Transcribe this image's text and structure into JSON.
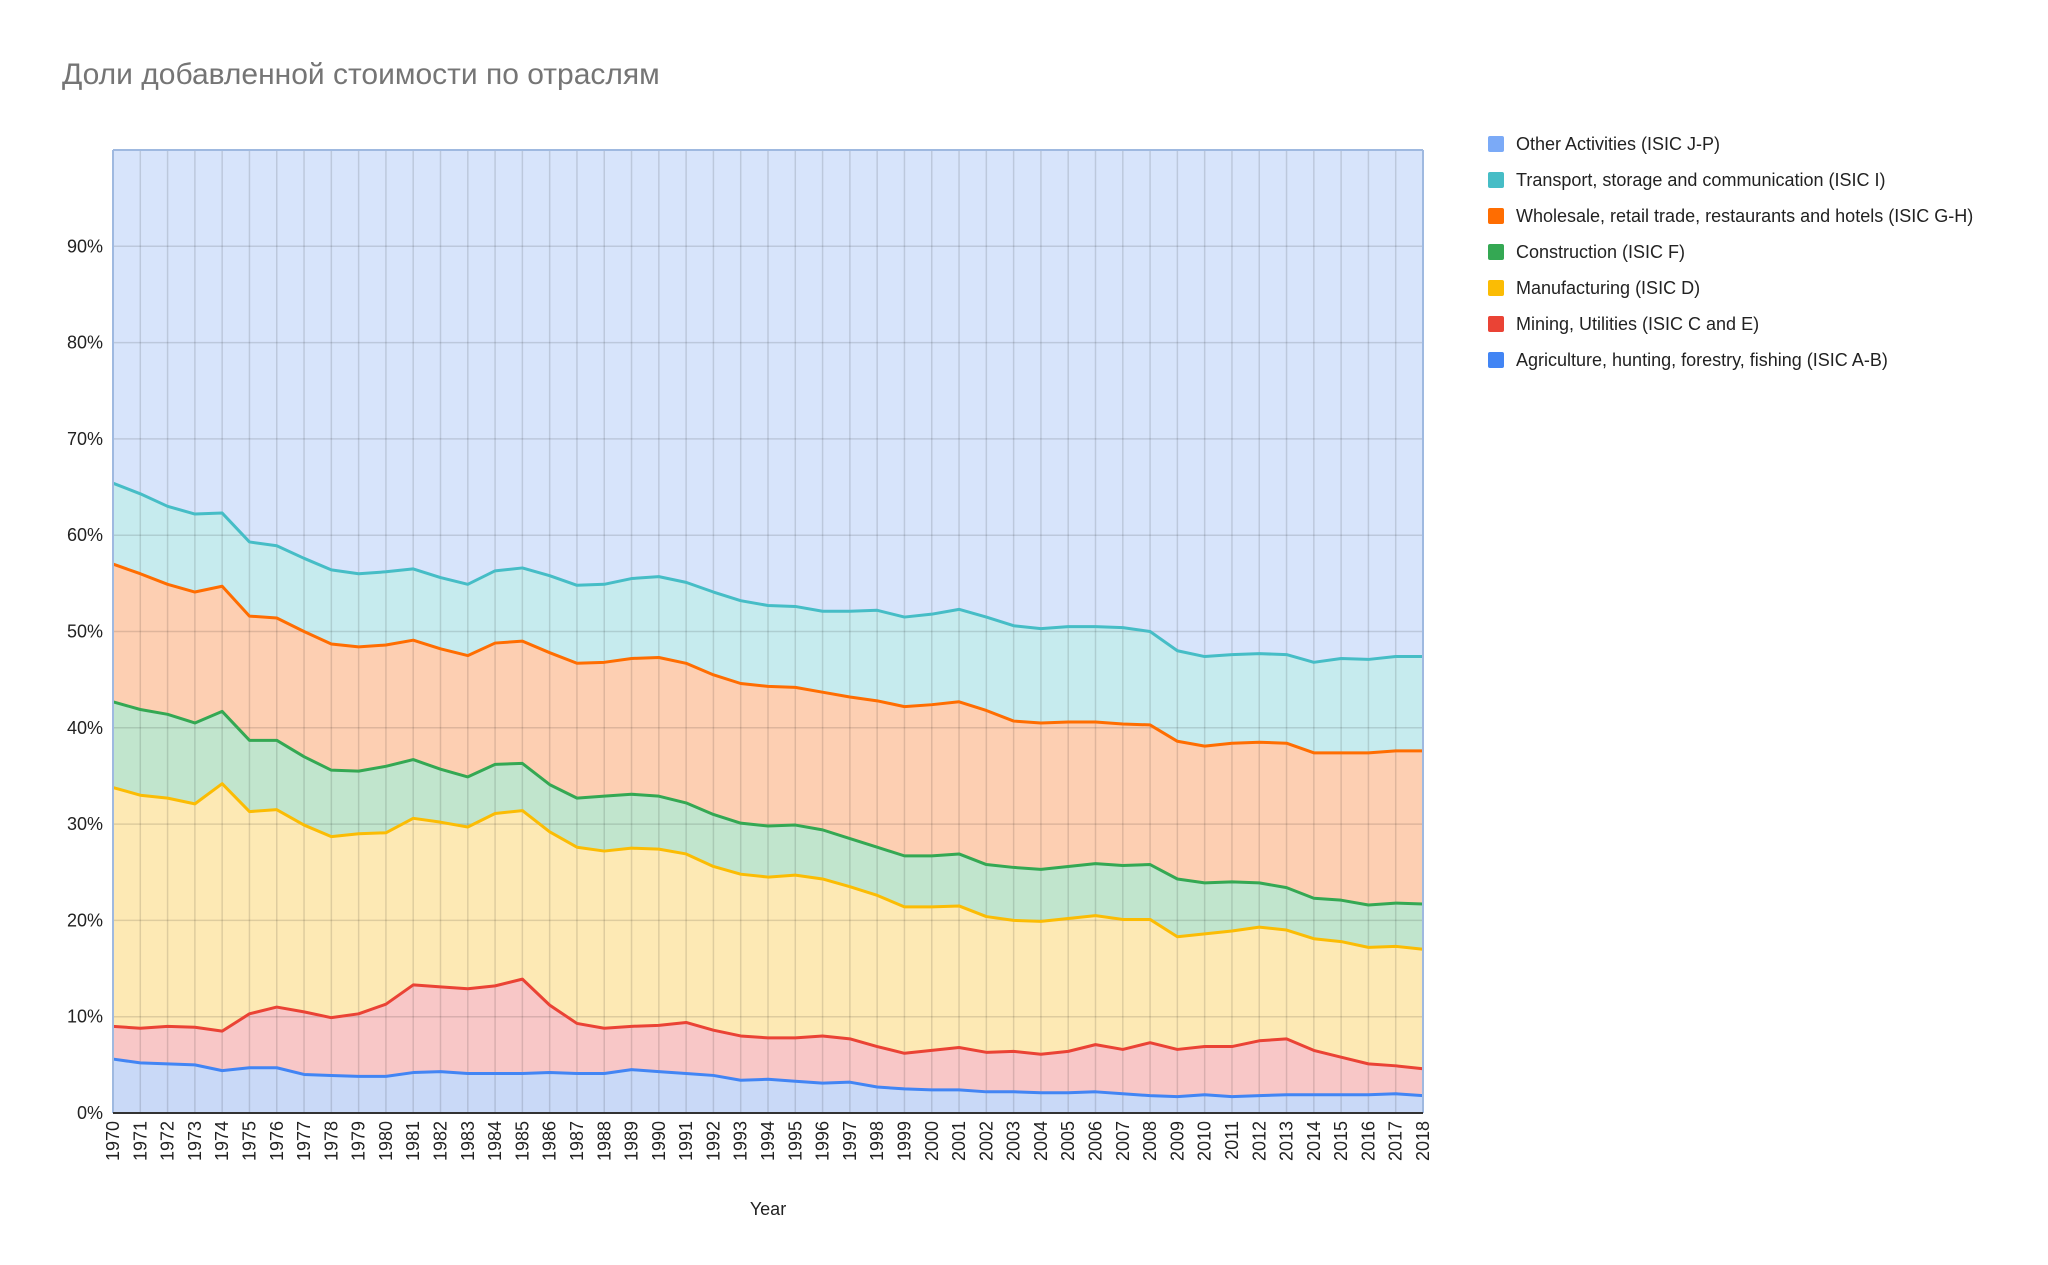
{
  "chart_data": {
    "type": "area",
    "stacked": true,
    "title": "Доли добавленной стоимости по отраслям",
    "xlabel": "Year",
    "ylabel": "",
    "ylim": [
      0,
      100
    ],
    "y_tick_labels": [
      "0%",
      "10%",
      "20%",
      "30%",
      "40%",
      "50%",
      "60%",
      "70%",
      "80%",
      "90%"
    ],
    "y_tick_values": [
      0,
      10,
      20,
      30,
      40,
      50,
      60,
      70,
      80,
      90
    ],
    "grid": true,
    "legend_position": "right",
    "categories": [
      "1970",
      "1971",
      "1972",
      "1973",
      "1974",
      "1975",
      "1976",
      "1977",
      "1978",
      "1979",
      "1980",
      "1981",
      "1982",
      "1983",
      "1984",
      "1985",
      "1986",
      "1987",
      "1988",
      "1989",
      "1990",
      "1991",
      "1992",
      "1993",
      "1994",
      "1995",
      "1996",
      "1997",
      "1998",
      "1999",
      "2000",
      "2001",
      "2002",
      "2003",
      "2004",
      "2005",
      "2006",
      "2007",
      "2008",
      "2009",
      "2010",
      "2011",
      "2012",
      "2013",
      "2014",
      "2015",
      "2016",
      "2017",
      "2018"
    ],
    "series": [
      {
        "name": "Agriculture, hunting, forestry, fishing (ISIC A-B)",
        "color": "#4285f4",
        "fill": "#c9d9f7",
        "cumulative": [
          5.6,
          5.2,
          5.1,
          5.0,
          4.4,
          4.7,
          4.7,
          4.0,
          3.9,
          3.8,
          3.8,
          4.2,
          4.3,
          4.1,
          4.1,
          4.1,
          4.2,
          4.1,
          4.1,
          4.5,
          4.3,
          4.1,
          3.9,
          3.4,
          3.5,
          3.3,
          3.1,
          3.2,
          2.7,
          2.5,
          2.4,
          2.4,
          2.2,
          2.2,
          2.1,
          2.1,
          2.2,
          2.0,
          1.8,
          1.7,
          1.9,
          1.7,
          1.8,
          1.9,
          1.9,
          1.9,
          1.9,
          2.0,
          1.8
        ]
      },
      {
        "name": "Mining, Utilities (ISIC C and E)",
        "color": "#ea4335",
        "fill": "#f8c7c7",
        "cumulative": [
          9.0,
          8.8,
          9.0,
          8.9,
          8.5,
          10.3,
          11.0,
          10.5,
          9.9,
          10.3,
          11.3,
          13.3,
          13.1,
          12.9,
          13.2,
          13.9,
          11.2,
          9.3,
          8.8,
          9.0,
          9.1,
          9.4,
          8.6,
          8.0,
          7.8,
          7.8,
          8.0,
          7.7,
          6.9,
          6.2,
          6.5,
          6.8,
          6.3,
          6.4,
          6.1,
          6.4,
          7.1,
          6.6,
          7.3,
          6.6,
          6.9,
          6.9,
          7.5,
          7.7,
          6.5,
          5.8,
          5.1,
          4.9,
          4.6
        ]
      },
      {
        "name": "Manufacturing (ISIC D)",
        "color": "#fbbc04",
        "fill": "#fde9b4",
        "cumulative": [
          33.8,
          33.0,
          32.7,
          32.1,
          34.2,
          31.3,
          31.5,
          29.9,
          28.7,
          29.0,
          29.1,
          30.6,
          30.2,
          29.7,
          31.1,
          31.4,
          29.2,
          27.6,
          27.2,
          27.5,
          27.4,
          26.9,
          25.6,
          24.8,
          24.5,
          24.7,
          24.3,
          23.5,
          22.6,
          21.4,
          21.4,
          21.5,
          20.4,
          20.0,
          19.9,
          20.2,
          20.5,
          20.1,
          20.1,
          18.3,
          18.6,
          18.9,
          19.3,
          19.0,
          18.1,
          17.8,
          17.2,
          17.3,
          17.0
        ]
      },
      {
        "name": "Construction (ISIC F)",
        "color": "#34a853",
        "fill": "#c1e5cd",
        "cumulative": [
          42.7,
          41.9,
          41.4,
          40.5,
          41.7,
          38.7,
          38.7,
          37.0,
          35.6,
          35.5,
          36.0,
          36.7,
          35.7,
          34.9,
          36.2,
          36.3,
          34.1,
          32.7,
          32.9,
          33.1,
          32.9,
          32.2,
          31.0,
          30.1,
          29.8,
          29.9,
          29.4,
          28.5,
          27.6,
          26.7,
          26.7,
          26.9,
          25.8,
          25.5,
          25.3,
          25.6,
          25.9,
          25.7,
          25.8,
          24.3,
          23.9,
          24.0,
          23.9,
          23.4,
          22.3,
          22.1,
          21.6,
          21.8,
          21.7
        ]
      },
      {
        "name": "Wholesale, retail trade, restaurants and hotels (ISIC G-H)",
        "color": "#ff6d01",
        "fill": "#fdcfb2",
        "cumulative": [
          57.0,
          56.0,
          54.9,
          54.1,
          54.7,
          51.6,
          51.4,
          50.0,
          48.7,
          48.4,
          48.6,
          49.1,
          48.2,
          47.5,
          48.8,
          49.0,
          47.8,
          46.7,
          46.8,
          47.2,
          47.3,
          46.7,
          45.5,
          44.6,
          44.3,
          44.2,
          43.7,
          43.2,
          42.8,
          42.2,
          42.4,
          42.7,
          41.8,
          40.7,
          40.5,
          40.6,
          40.6,
          40.4,
          40.3,
          38.6,
          38.1,
          38.4,
          38.5,
          38.4,
          37.4,
          37.4,
          37.4,
          37.6,
          37.6
        ]
      },
      {
        "name": "Transport, storage and communication (ISIC I)",
        "color": "#46bdc6",
        "fill": "#c6ebee",
        "cumulative": [
          65.4,
          64.3,
          63.0,
          62.2,
          62.3,
          59.3,
          58.9,
          57.6,
          56.4,
          56.0,
          56.2,
          56.5,
          55.6,
          54.9,
          56.3,
          56.6,
          55.8,
          54.8,
          54.9,
          55.5,
          55.7,
          55.1,
          54.1,
          53.2,
          52.7,
          52.6,
          52.1,
          52.1,
          52.2,
          51.5,
          51.8,
          52.3,
          51.5,
          50.6,
          50.3,
          50.5,
          50.5,
          50.4,
          50.0,
          48.0,
          47.4,
          47.6,
          47.7,
          47.6,
          46.8,
          47.2,
          47.1,
          47.4,
          47.4
        ]
      },
      {
        "name": "Other Activities (ISIC J-P)",
        "color": "#7baaf7",
        "fill": "#d7e4fb",
        "cumulative": [
          100,
          100,
          100,
          100,
          100,
          100,
          100,
          100,
          100,
          100,
          100,
          100,
          100,
          100,
          100,
          100,
          100,
          100,
          100,
          100,
          100,
          100,
          100,
          100,
          100,
          100,
          100,
          100,
          100,
          100,
          100,
          100,
          100,
          100,
          100,
          100,
          100,
          100,
          100,
          100,
          100,
          100,
          100,
          100,
          100,
          100,
          100,
          100,
          100
        ]
      }
    ]
  },
  "legend": {
    "items": [
      {
        "label": "Other Activities (ISIC J-P)",
        "color": "#7baaf7"
      },
      {
        "label": "Transport, storage and communication (ISIC I)",
        "color": "#46bdc6"
      },
      {
        "label": "Wholesale, retail trade, restaurants and hotels (ISIC G-H)",
        "color": "#ff6d01"
      },
      {
        "label": "Construction (ISIC F)",
        "color": "#34a853"
      },
      {
        "label": "Manufacturing (ISIC D)",
        "color": "#fbbc04"
      },
      {
        "label": "Mining, Utilities (ISIC C and E)",
        "color": "#ea4335"
      },
      {
        "label": "Agriculture, hunting, forestry, fishing (ISIC A-B)",
        "color": "#4285f4"
      }
    ]
  }
}
